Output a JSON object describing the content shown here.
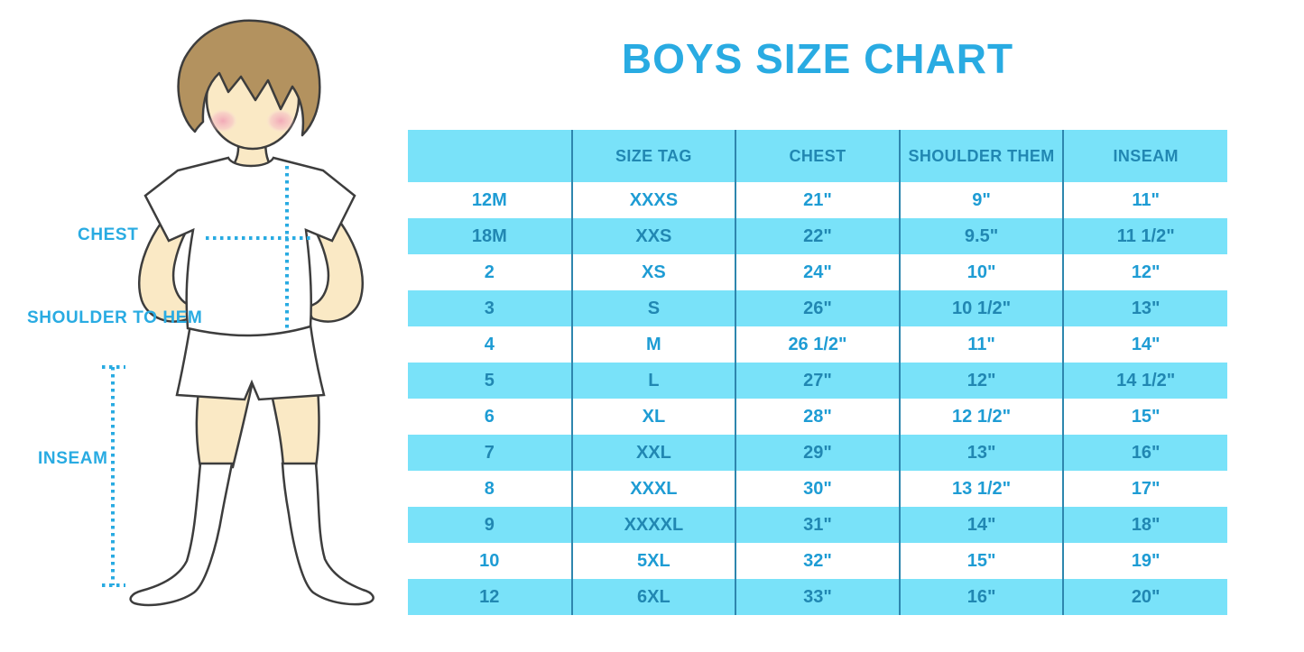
{
  "title": "BOYS SIZE CHART",
  "figure": {
    "description": "outline illustration of a boy in white t-shirt, shorts and knee socks with dotted measurement guides",
    "labels": [
      {
        "text": "CHEST"
      },
      {
        "text": "SHOULDER TO HEM"
      },
      {
        "text": "INSEAM"
      }
    ]
  },
  "chart_data": {
    "type": "table",
    "title": "BOYS SIZE CHART",
    "columns": [
      "",
      "SIZE TAG",
      "CHEST",
      "SHOULDER THEM",
      "INSEAM"
    ],
    "rows": [
      [
        "12M",
        "XXXS",
        "21\"",
        "9\"",
        "11\""
      ],
      [
        "18M",
        "XXS",
        "22\"",
        "9.5\"",
        "11 1/2\""
      ],
      [
        "2",
        "XS",
        "24\"",
        "10\"",
        "12\""
      ],
      [
        "3",
        "S",
        "26\"",
        "10 1/2\"",
        "13\""
      ],
      [
        "4",
        "M",
        "26 1/2\"",
        "11\"",
        "14\""
      ],
      [
        "5",
        "L",
        "27\"",
        "12\"",
        "14 1/2\""
      ],
      [
        "6",
        "XL",
        "28\"",
        "12 1/2\"",
        "15\""
      ],
      [
        "7",
        "XXL",
        "29\"",
        "13\"",
        "16\""
      ],
      [
        "8",
        "XXXL",
        "30\"",
        "13 1/2\"",
        "17\""
      ],
      [
        "9",
        "XXXXL",
        "31\"",
        "14\"",
        "18\""
      ],
      [
        "10",
        "5XL",
        "32\"",
        "15\"",
        "19\""
      ],
      [
        "12",
        "6XL",
        "33\"",
        "16\"",
        "20\""
      ]
    ],
    "layout": {
      "alternating_row_fill": true,
      "first_row_fill": "white",
      "header_fill": "light-cyan"
    }
  },
  "colors": {
    "accent_blue": "#29ABE2",
    "table_fill_blue": "#79E2F9",
    "table_text_dark": "#2187B2",
    "table_text_light_row": "#1E9CD4",
    "column_divider": "#2E86AE",
    "skin": "#FAE9C5",
    "hair_brown": "#B3925F",
    "outline_gray": "#3D3D3D"
  }
}
